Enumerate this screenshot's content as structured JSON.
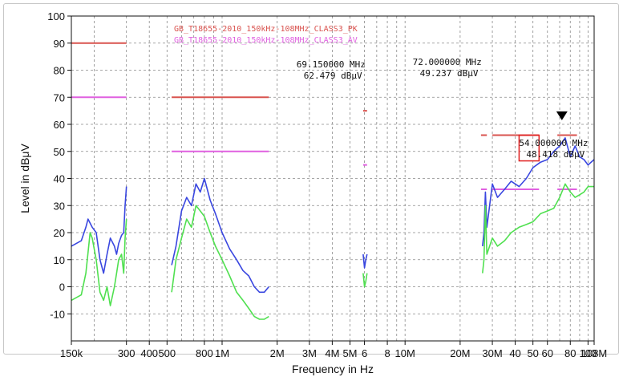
{
  "chart_data": {
    "type": "line",
    "xlabel": "Frequency in Hz",
    "ylabel": "Level in dBμV",
    "x_scale": "log",
    "xlim": [
      150000,
      108000000
    ],
    "ylim": [
      -20,
      100
    ],
    "y_ticks": [
      -10,
      0,
      10,
      20,
      30,
      40,
      50,
      60,
      70,
      80,
      90,
      100
    ],
    "x_ticks": [
      {
        "v": 150000,
        "label": "150k"
      },
      {
        "v": 300000,
        "label": "300"
      },
      {
        "v": 400000,
        "label": "400"
      },
      {
        "v": 500000,
        "label": "500"
      },
      {
        "v": 800000,
        "label": "800"
      },
      {
        "v": 1000000,
        "label": "1M"
      },
      {
        "v": 2000000,
        "label": "2M"
      },
      {
        "v": 3000000,
        "label": "3M"
      },
      {
        "v": 4000000,
        "label": "4M"
      },
      {
        "v": 5000000,
        "label": "5M"
      },
      {
        "v": 6000000,
        "label": "6"
      },
      {
        "v": 8000000,
        "label": "8"
      },
      {
        "v": 10000000,
        "label": "10M"
      },
      {
        "v": 20000000,
        "label": "20M"
      },
      {
        "v": 30000000,
        "label": "30M"
      },
      {
        "v": 40000000,
        "label": "40"
      },
      {
        "v": 50000000,
        "label": "50"
      },
      {
        "v": 60000000,
        "label": "60"
      },
      {
        "v": 80000000,
        "label": "80"
      },
      {
        "v": 100000000,
        "label": "100"
      },
      {
        "v": 108000000,
        "label": "108M"
      }
    ],
    "grid": true,
    "legend": [
      {
        "name": "GB_T18655-2010_150kHz-108MHz_CLASS3_PK",
        "color": "#d9534f"
      },
      {
        "name": "GB_T18655-2010_150kHz-108MHz_CLASS3_AV",
        "color": "#e060e0"
      }
    ],
    "limit_lines": [
      {
        "series": "GB_T18655-2010_150kHz-108MHz_CLASS3_PK",
        "color": "#d9534f",
        "segments": [
          {
            "x": [
              150000,
              300000
            ],
            "y": 90
          },
          {
            "x": [
              530000,
              1800000
            ],
            "y": 70
          },
          {
            "x": [
              5900000,
              6200000
            ],
            "y": 65
          },
          {
            "x": [
              26000000,
              28000000
            ],
            "y": 56
          },
          {
            "x": [
              30000000,
              54000000
            ],
            "y": 56
          },
          {
            "x": [
              68000000,
              87000000
            ],
            "y": 56
          }
        ]
      },
      {
        "series": "GB_T18655-2010_150kHz-108MHz_CLASS3_AV",
        "color": "#e060e0",
        "segments": [
          {
            "x": [
              150000,
              300000
            ],
            "y": 70
          },
          {
            "x": [
              530000,
              1800000
            ],
            "y": 50
          },
          {
            "x": [
              5900000,
              6200000
            ],
            "y": 45
          },
          {
            "x": [
              26000000,
              28000000
            ],
            "y": 36
          },
          {
            "x": [
              30000000,
              54000000
            ],
            "y": 36
          },
          {
            "x": [
              68000000,
              87000000
            ],
            "y": 36
          }
        ]
      }
    ],
    "series": [
      {
        "color": "#3a47e0",
        "segments": [
          [
            [
              150000,
              15
            ],
            [
              170000,
              17
            ],
            [
              180000,
              22
            ],
            [
              185000,
              25
            ],
            [
              195000,
              22
            ],
            [
              205000,
              20
            ],
            [
              215000,
              10
            ],
            [
              225000,
              5
            ],
            [
              235000,
              12
            ],
            [
              245000,
              18
            ],
            [
              258000,
              15
            ],
            [
              265000,
              12
            ],
            [
              272000,
              16
            ],
            [
              282000,
              19
            ],
            [
              290000,
              20
            ],
            [
              295000,
              30
            ],
            [
              300000,
              37
            ]
          ],
          [
            [
              530000,
              8
            ],
            [
              560000,
              15
            ],
            [
              600000,
              28
            ],
            [
              640000,
              33
            ],
            [
              680000,
              30
            ],
            [
              720000,
              38
            ],
            [
              760000,
              35
            ],
            [
              800000,
              40
            ],
            [
              860000,
              32
            ],
            [
              920000,
              27
            ],
            [
              1000000,
              20
            ],
            [
              1100000,
              14
            ],
            [
              1200000,
              10
            ],
            [
              1300000,
              6
            ],
            [
              1400000,
              4
            ],
            [
              1500000,
              0
            ],
            [
              1600000,
              -2
            ],
            [
              1700000,
              -2
            ],
            [
              1800000,
              0
            ]
          ],
          [
            [
              5900000,
              12
            ],
            [
              6000000,
              7
            ],
            [
              6100000,
              10
            ],
            [
              6200000,
              12
            ]
          ],
          [
            [
              26500000,
              15
            ],
            [
              27000000,
              20
            ],
            [
              27500000,
              35
            ],
            [
              28000000,
              22
            ],
            [
              30000000,
              38
            ],
            [
              32000000,
              33
            ],
            [
              35000000,
              36
            ],
            [
              38000000,
              39
            ],
            [
              42000000,
              37
            ],
            [
              46000000,
              40
            ],
            [
              50000000,
              44
            ],
            [
              55000000,
              46
            ],
            [
              60000000,
              47
            ],
            [
              65000000,
              50
            ],
            [
              70000000,
              52
            ],
            [
              75000000,
              55
            ],
            [
              80000000,
              48
            ],
            [
              85000000,
              52
            ],
            [
              90000000,
              48
            ],
            [
              95000000,
              47
            ],
            [
              100000000,
              45
            ],
            [
              108000000,
              47
            ]
          ]
        ]
      },
      {
        "color": "#50e050",
        "segments": [
          [
            [
              150000,
              -5
            ],
            [
              170000,
              -3
            ],
            [
              180000,
              5
            ],
            [
              190000,
              20
            ],
            [
              195000,
              18
            ],
            [
              205000,
              10
            ],
            [
              215000,
              -2
            ],
            [
              225000,
              -5
            ],
            [
              235000,
              0
            ],
            [
              245000,
              -7
            ],
            [
              258000,
              0
            ],
            [
              265000,
              5
            ],
            [
              272000,
              10
            ],
            [
              282000,
              12
            ],
            [
              290000,
              5
            ],
            [
              295000,
              18
            ],
            [
              300000,
              25
            ]
          ],
          [
            [
              530000,
              -2
            ],
            [
              560000,
              10
            ],
            [
              600000,
              18
            ],
            [
              640000,
              25
            ],
            [
              680000,
              22
            ],
            [
              720000,
              30
            ],
            [
              760000,
              28
            ],
            [
              800000,
              26
            ],
            [
              860000,
              20
            ],
            [
              920000,
              15
            ],
            [
              1000000,
              10
            ],
            [
              1100000,
              4
            ],
            [
              1200000,
              -2
            ],
            [
              1300000,
              -5
            ],
            [
              1400000,
              -8
            ],
            [
              1500000,
              -11
            ],
            [
              1600000,
              -12
            ],
            [
              1700000,
              -12
            ],
            [
              1800000,
              -11
            ]
          ],
          [
            [
              5900000,
              5
            ],
            [
              6000000,
              0
            ],
            [
              6100000,
              2
            ],
            [
              6200000,
              5
            ]
          ],
          [
            [
              26500000,
              5
            ],
            [
              27000000,
              10
            ],
            [
              27500000,
              30
            ],
            [
              28000000,
              12
            ],
            [
              30000000,
              18
            ],
            [
              32000000,
              15
            ],
            [
              35000000,
              17
            ],
            [
              38000000,
              20
            ],
            [
              42000000,
              22
            ],
            [
              46000000,
              23
            ],
            [
              50000000,
              24
            ],
            [
              55000000,
              27
            ],
            [
              60000000,
              28
            ],
            [
              65000000,
              29
            ],
            [
              70000000,
              33
            ],
            [
              75000000,
              38
            ],
            [
              80000000,
              35
            ],
            [
              85000000,
              33
            ],
            [
              90000000,
              34
            ],
            [
              95000000,
              35
            ],
            [
              100000000,
              37
            ],
            [
              108000000,
              37
            ]
          ]
        ]
      }
    ],
    "annotations": [
      {
        "freq": "69.150000",
        "freq_unit": "MHz",
        "level": "62.479",
        "level_unit": "dBμV",
        "x": 2550000,
        "y": 81
      },
      {
        "freq": "72.000000",
        "freq_unit": "MHz",
        "level": "49.237",
        "level_unit": "dBμV",
        "x": 11000000,
        "y": 82
      },
      {
        "freq": "54.000000",
        "freq_unit": "MHz",
        "level": "48.418",
        "level_unit": "dBμV",
        "x": 42000000,
        "y": 52
      }
    ],
    "marker": {
      "x": 72000000,
      "y": 63,
      "color": "#000000"
    },
    "highlight_box": {
      "x": [
        42000000,
        54000000
      ],
      "y": [
        46.5,
        56
      ],
      "color": "#e02020"
    }
  }
}
